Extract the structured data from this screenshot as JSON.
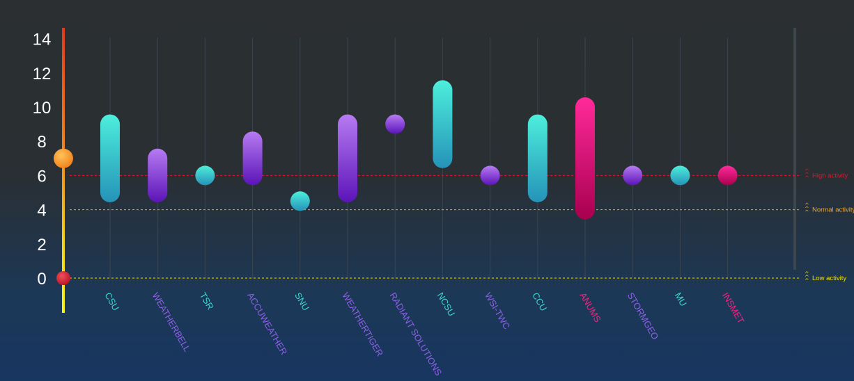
{
  "chart_data": {
    "type": "range-bar",
    "yticks": [
      "0",
      "2",
      "4",
      "6",
      "8",
      "10",
      "12",
      "14"
    ],
    "ylim": [
      0,
      14
    ],
    "current_value": 7,
    "categories": [
      {
        "label": "CSU",
        "low": 5,
        "high": 9,
        "color": "teal"
      },
      {
        "label": "WEATHERBELL",
        "low": 5,
        "high": 7,
        "color": "purple"
      },
      {
        "label": "TSR",
        "low": 6,
        "high": 6,
        "color": "teal"
      },
      {
        "label": "ACCUWEATHER",
        "low": 6,
        "high": 8,
        "color": "purple"
      },
      {
        "label": "SNU",
        "low": 4.5,
        "high": 4.5,
        "color": "teal"
      },
      {
        "label": "WEATHERTIGER",
        "low": 5,
        "high": 9,
        "color": "purple"
      },
      {
        "label": "RADIANT SOLUTIONS",
        "low": 9,
        "high": 9,
        "color": "purple"
      },
      {
        "label": "NCSU",
        "low": 7,
        "high": 11,
        "color": "teal"
      },
      {
        "label": "WSI-TWC",
        "low": 6,
        "high": 6,
        "color": "purple"
      },
      {
        "label": "CCU",
        "low": 5,
        "high": 9,
        "color": "teal"
      },
      {
        "label": "ANUMS",
        "low": 4,
        "high": 10,
        "color": "pink"
      },
      {
        "label": "STORMGEO",
        "low": 6,
        "high": 6,
        "color": "purple"
      },
      {
        "label": "MU",
        "low": 6,
        "high": 6,
        "color": "teal"
      },
      {
        "label": "INSMET",
        "low": 6,
        "high": 6,
        "color": "pink"
      }
    ],
    "thresholds": [
      {
        "label": "High activity",
        "value": 6,
        "color": "#d81b2f"
      },
      {
        "label": "Normal activity",
        "value": 4,
        "color": "#f5a623"
      },
      {
        "label": "Low activity",
        "value": 0,
        "color": "#f0e000"
      }
    ],
    "grid": true
  },
  "colors": {
    "teal_top": "#4deedc",
    "teal_bottom": "#2593b8",
    "purple_top": "#b77bf2",
    "purple_bottom": "#5b14b8",
    "pink_top": "#ff2a9a",
    "pink_bottom": "#a8004f",
    "teal_label": "#3fd6d2",
    "purple_label": "#8f5fe8",
    "pink_label": "#ff1f80"
  }
}
